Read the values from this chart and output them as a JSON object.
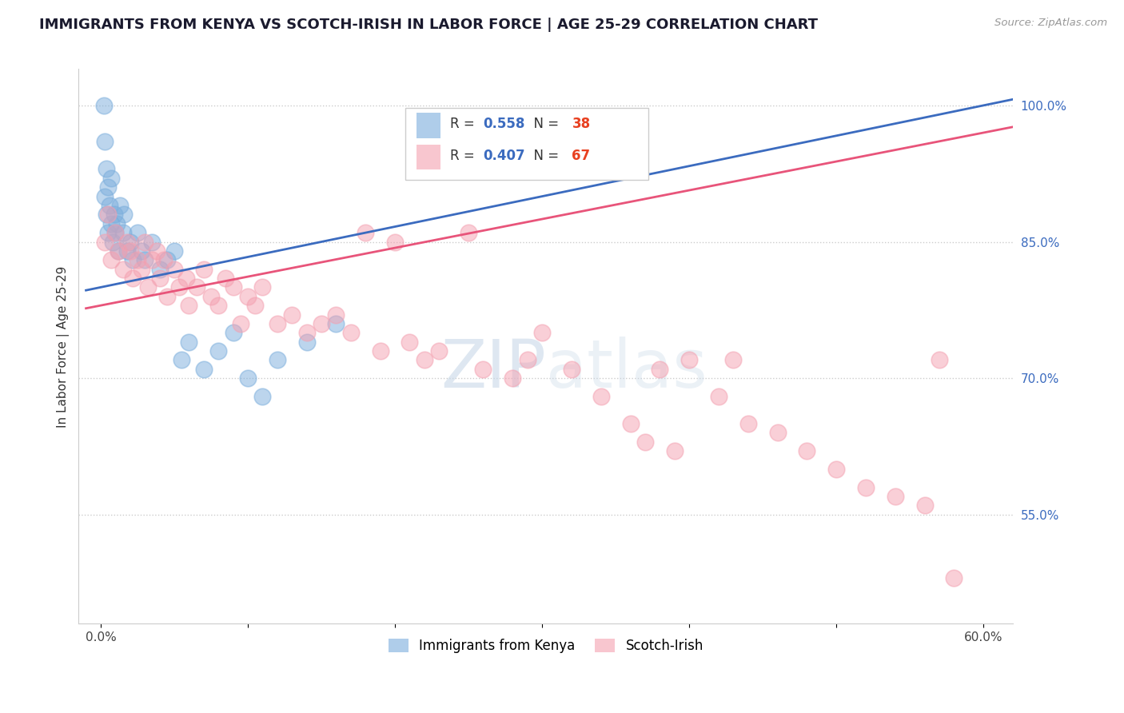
{
  "title": "IMMIGRANTS FROM KENYA VS SCOTCH-IRISH IN LABOR FORCE | AGE 25-29 CORRELATION CHART",
  "source": "Source: ZipAtlas.com",
  "ylabel": "In Labor Force | Age 25-29",
  "xlim": [
    0.0,
    60.0
  ],
  "ylim": [
    43.0,
    104.0
  ],
  "x_tick_positions": [
    0.0,
    10.0,
    20.0,
    30.0,
    40.0,
    50.0,
    60.0
  ],
  "x_tick_labels": [
    "0.0%",
    "",
    "",
    "",
    "",
    "",
    "60.0%"
  ],
  "y_tick_vals_right": [
    100.0,
    85.0,
    70.0,
    55.0
  ],
  "y_tick_labels_right": [
    "100.0%",
    "85.0%",
    "70.0%",
    "55.0%"
  ],
  "kenya_color": "#7aaddc",
  "scotch_color": "#f4a0b0",
  "kenya_line_color": "#3b6bbf",
  "scotch_line_color": "#e8547a",
  "background_color": "#ffffff",
  "grid_color": "#cccccc",
  "title_fontsize": 13,
  "axis_label_fontsize": 11,
  "tick_fontsize": 11,
  "legend_r_color": "#3b6bbf",
  "legend_n_color": "#e84020",
  "watermark_text": "ZIPatlas",
  "bottom_legend_kenya": "Immigrants from Kenya",
  "bottom_legend_scotch": "Scotch-Irish"
}
